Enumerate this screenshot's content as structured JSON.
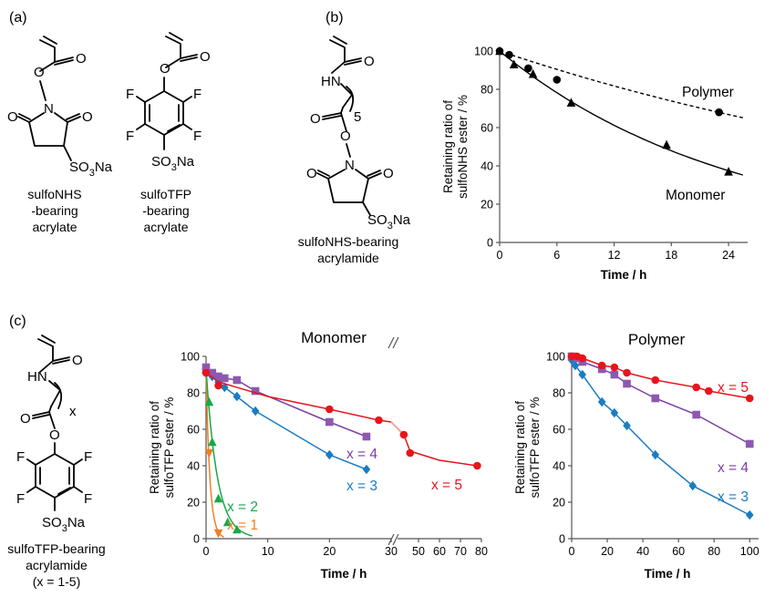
{
  "panels": {
    "a": "(a)",
    "b": "(b)",
    "c": "(c)"
  },
  "atoms": {
    "O": "O",
    "N": "N",
    "F": "F",
    "HN": "HN",
    "SO3Na_pre": "SO",
    "SO3Na_sub": "3",
    "SO3Na_post": "Na",
    "x": "x",
    "five": "5"
  },
  "captions": {
    "nhs_acrylate": [
      "sulfoNHS",
      "-bearing",
      "acrylate"
    ],
    "tfp_acrylate": [
      "sulfoTFP",
      "-bearing",
      "acrylate"
    ],
    "nhs_acrylamide": [
      "sulfoNHS-bearing",
      "acrylamide"
    ],
    "tfp_acrylamide": [
      "sulfoTFP-bearing",
      "acrylamide",
      "(x = 1-5)"
    ]
  },
  "colors": {
    "black": "#000000",
    "red": "#e8141b",
    "purple": "#7b3ea4",
    "blue": "#1a7cc1",
    "green": "#19a84a",
    "orange": "#f07f22",
    "purple_marker": "#8e58b0",
    "red_light": "#f3a5a6"
  },
  "chart_data": [
    {
      "id": "b",
      "type": "scatter",
      "title": "",
      "xlabel": "Time / h",
      "ylabel": [
        "Retaining ratio of",
        "sulfoNHS ester / %"
      ],
      "xlim": [
        0,
        26
      ],
      "ylim": [
        0,
        100
      ],
      "xticks": [
        0,
        6,
        12,
        18,
        24
      ],
      "yticks": [
        0,
        20,
        40,
        60,
        80,
        100
      ],
      "grid": false,
      "series": [
        {
          "name": "Polymer",
          "marker": "circle",
          "line": "dashed",
          "x": [
            0,
            1,
            3,
            6,
            23
          ],
          "y": [
            100,
            98,
            91,
            85,
            68
          ]
        },
        {
          "name": "Monomer",
          "marker": "triangle",
          "line": "solid",
          "x": [
            0,
            1.5,
            3.5,
            7.5,
            17.5,
            24
          ],
          "y": [
            100,
            93,
            88,
            73,
            51,
            37
          ]
        }
      ]
    },
    {
      "id": "c-monomer",
      "type": "scatter",
      "title": "Monomer",
      "xlabel": "Time / h",
      "ylabel": [
        "Retaining ratio of",
        "sulfoTFP ester / %"
      ],
      "xlim": [
        0,
        80
      ],
      "ylim": [
        0,
        100
      ],
      "xticks": [
        0,
        10,
        20,
        30,
        40,
        50,
        60,
        70,
        80
      ],
      "yticks": [
        0,
        20,
        40,
        60,
        80,
        100
      ],
      "axis_break": true,
      "grid": false,
      "series": [
        {
          "name": "x = 1",
          "marker": "triangle-down",
          "x": [
            0,
            0.5,
            2
          ],
          "y": [
            91,
            47,
            3
          ]
        },
        {
          "name": "x = 2",
          "marker": "triangle",
          "x": [
            0,
            0.5,
            1,
            2,
            3.5,
            5
          ],
          "y": [
            93,
            75,
            53,
            22,
            9,
            5
          ]
        },
        {
          "name": "x = 3",
          "marker": "diamond",
          "x": [
            0,
            1,
            2,
            3,
            5,
            8,
            20,
            26
          ],
          "y": [
            91,
            89,
            86,
            83,
            78,
            70,
            46,
            38
          ]
        },
        {
          "name": "x = 4",
          "marker": "square",
          "x": [
            0,
            1,
            2,
            3,
            5,
            8,
            20,
            26
          ],
          "y": [
            94,
            91,
            89,
            88,
            87,
            81,
            64,
            56
          ]
        },
        {
          "name": "x = 5",
          "marker": "circle",
          "x": [
            0,
            2,
            20,
            28,
            43,
            46,
            78
          ],
          "y": [
            91,
            84,
            71,
            65,
            57,
            47,
            40
          ]
        }
      ]
    },
    {
      "id": "c-polymer",
      "type": "scatter",
      "title": "Polymer",
      "xlabel": "Time / h",
      "ylabel": [
        "Retaining ratio of",
        "sulfoTFP ester / %"
      ],
      "xlim": [
        0,
        105
      ],
      "ylim": [
        0,
        100
      ],
      "xticks": [
        0,
        20,
        40,
        60,
        80,
        100
      ],
      "yticks": [
        0,
        20,
        40,
        60,
        80,
        100
      ],
      "grid": false,
      "series": [
        {
          "name": "x = 3",
          "marker": "diamond",
          "x": [
            0,
            2,
            6,
            17,
            24,
            31,
            47,
            68,
            100
          ],
          "y": [
            98,
            95,
            90,
            75,
            69,
            62,
            46,
            29,
            13
          ]
        },
        {
          "name": "x = 4",
          "marker": "square",
          "x": [
            0,
            3,
            6,
            17,
            24,
            31,
            47,
            70,
            100
          ],
          "y": [
            100,
            99,
            97,
            93,
            90,
            85,
            77,
            68,
            52
          ]
        },
        {
          "name": "x = 5",
          "marker": "circle",
          "x": [
            0,
            3,
            6,
            17,
            24,
            31,
            47,
            70,
            77,
            100
          ],
          "y": [
            100,
            100,
            99,
            95,
            94,
            91,
            87,
            83,
            81,
            77
          ]
        }
      ]
    }
  ]
}
